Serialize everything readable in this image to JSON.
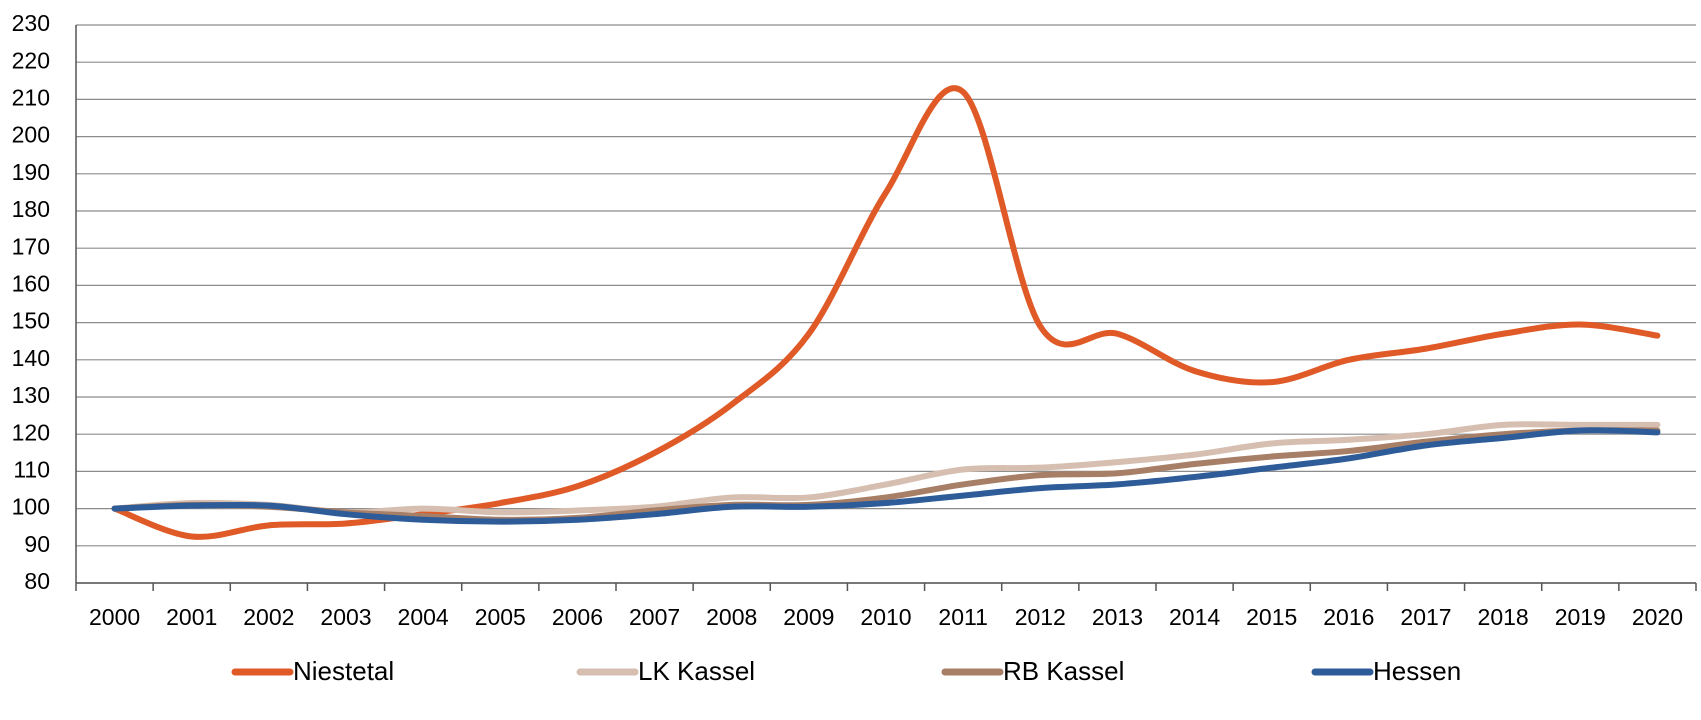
{
  "chart_data": {
    "type": "line",
    "categories": [
      "2000",
      "2001",
      "2002",
      "2003",
      "2004",
      "2005",
      "2006",
      "2007",
      "2008",
      "2009",
      "2010",
      "2011",
      "2012",
      "2013",
      "2014",
      "2015",
      "2016",
      "2017",
      "2018",
      "2019",
      "2020"
    ],
    "series": [
      {
        "name": "Niestetal",
        "color": "#e05a28",
        "values": [
          100,
          92.5,
          95.5,
          96,
          98.5,
          101.5,
          106,
          115,
          128,
          147,
          185,
          212,
          149,
          147,
          137,
          134,
          140,
          143,
          147,
          149.5,
          146.5
        ]
      },
      {
        "name": "LK Kassel",
        "color": "#d6bfb0",
        "values": [
          100,
          101.5,
          101,
          99,
          100,
          99,
          99.5,
          100.5,
          103,
          103,
          106.5,
          110.5,
          111,
          112.5,
          114.5,
          117.5,
          118.5,
          120,
          122.5,
          122.5,
          122.5
        ]
      },
      {
        "name": "RB Kassel",
        "color": "#a77e66",
        "values": [
          100,
          101,
          100.5,
          99,
          98,
          97,
          97.5,
          99.5,
          101,
          101,
          103,
          106.5,
          109,
          109.5,
          112,
          114,
          115.5,
          118,
          120,
          121,
          121
        ]
      },
      {
        "name": "Hessen",
        "color": "#2e5c99",
        "values": [
          100,
          100.8,
          100.8,
          98.5,
          97,
          96.5,
          97,
          98.5,
          100.5,
          100.5,
          101.5,
          103.5,
          105.5,
          106.5,
          108.5,
          111,
          113.5,
          117,
          119,
          121,
          120.5
        ]
      }
    ],
    "ylim": [
      80,
      230
    ],
    "yticks": [
      80,
      90,
      100,
      110,
      120,
      130,
      140,
      150,
      160,
      170,
      180,
      190,
      200,
      210,
      220,
      230
    ],
    "grid": true,
    "legend": "bottom"
  }
}
